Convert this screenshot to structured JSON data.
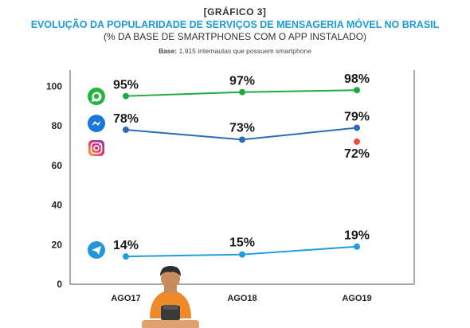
{
  "header": {
    "tag": "[GRÁFICO 3]",
    "title": "EVOLUÇÃO DA POPULARIDADE DE SERVIÇOS DE MENSAGERIA MÓVEL NO BRASIL",
    "subtitle": "(% DA BASE DE SMARTPHONES COM O APP INSTALADO)",
    "base_label": "Base:",
    "base_text": "1.915 internautas que possuem smartphone"
  },
  "icons": [
    "whatsapp-icon",
    "messenger-icon",
    "instagram-icon",
    "telegram-icon"
  ],
  "chart_data": {
    "type": "line",
    "title": "EVOLUÇÃO DA POPULARIDADE DE SERVIÇOS DE MENSAGERIA MÓVEL NO BRASIL",
    "subtitle": "(% DA BASE DE SMARTPHONES COM O APP INSTALADO)",
    "categories": [
      "AGO17",
      "AGO18",
      "AGO19"
    ],
    "yticks": [
      0,
      20,
      40,
      60,
      80,
      100
    ],
    "ylim": [
      0,
      100
    ],
    "grid": false,
    "series": [
      {
        "icon": "whatsapp-icon",
        "color": "#1faa3f",
        "values": [
          95,
          97,
          98
        ],
        "labels": [
          "95%",
          "97%",
          "98%"
        ]
      },
      {
        "icon": "messenger-icon",
        "color": "#2a6db5",
        "values": [
          78,
          73,
          79
        ],
        "labels": [
          "78%",
          "73%",
          "79%"
        ]
      },
      {
        "icon": "instagram-icon",
        "color": "#e8503a",
        "values": [
          null,
          null,
          72
        ],
        "labels": [
          null,
          null,
          "72%"
        ]
      },
      {
        "icon": "telegram-icon",
        "color": "#1e9de0",
        "values": [
          14,
          15,
          19
        ],
        "labels": [
          "14%",
          "15%",
          "19%"
        ]
      }
    ]
  }
}
